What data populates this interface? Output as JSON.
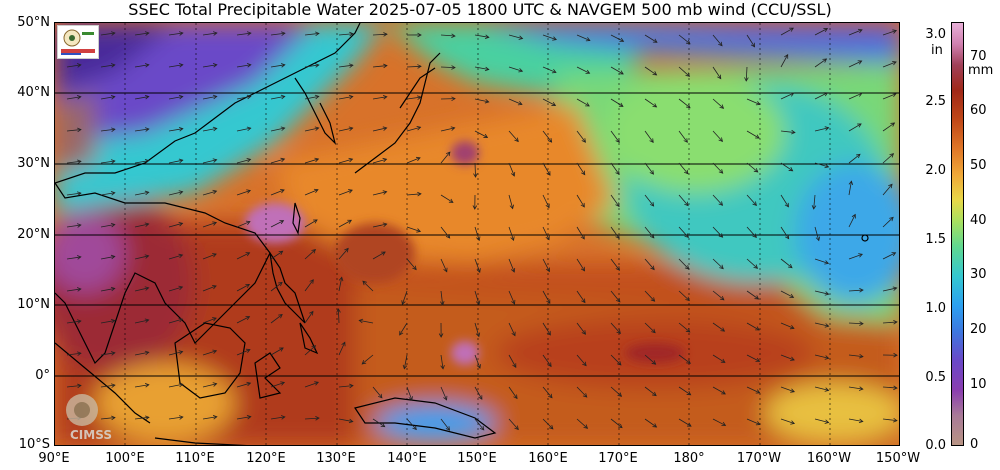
{
  "title": "SSEC Total Precipitable Water  2025-07-05 1800 UTC & NAVGEM 500 mb wind (CCU/SSL)",
  "lat_labels": [
    "50°N",
    "40°N",
    "30°N",
    "20°N",
    "10°N",
    "0°",
    "10°S"
  ],
  "lon_labels": [
    "90°E",
    "100°E",
    "110°E",
    "120°E",
    "130°E",
    "140°E",
    "150°E",
    "160°E",
    "170°E",
    "180°",
    "170°W",
    "160°W",
    "150°W"
  ],
  "colorbar": {
    "unit_in": "in",
    "unit_mm": "mm",
    "in_ticks": [
      "3.0",
      "2.5",
      "2.0",
      "1.5",
      "1.0",
      "0.5",
      "0.0"
    ],
    "mm_ticks": [
      "70",
      "60",
      "50",
      "40",
      "30",
      "20",
      "10",
      "0"
    ]
  },
  "logos": {
    "ssec": "SSEC logo",
    "cimss": "CIMSS"
  },
  "colors": {
    "very_high": "#a0304a",
    "high": "#c0501c",
    "mid_high": "#e8892a",
    "mid": "#a8e060",
    "low": "#34c8d0",
    "very_low": "#6a48c8",
    "land_border": "#000000"
  }
}
